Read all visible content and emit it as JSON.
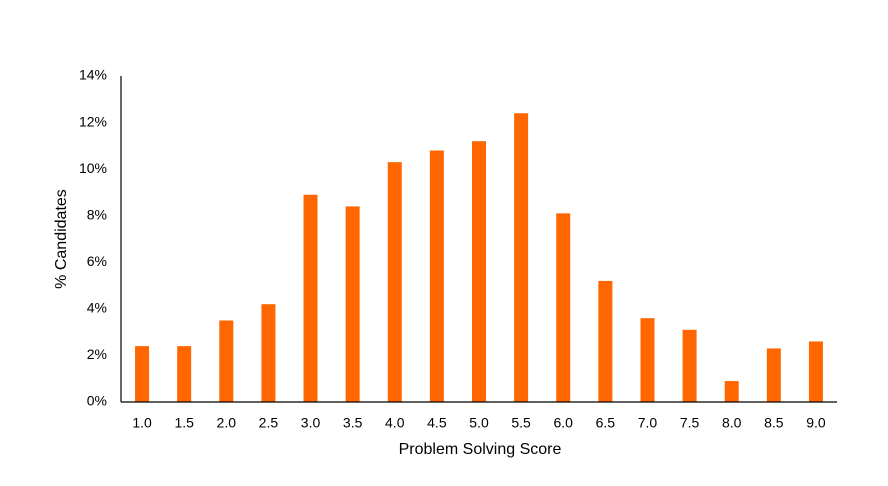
{
  "chart_data": {
    "type": "bar",
    "x_label": "Problem Solving Score",
    "y_label": "% Candidates",
    "categories": [
      "1.0",
      "1.5",
      "2.0",
      "2.5",
      "3.0",
      "3.5",
      "4.0",
      "4.5",
      "5.0",
      "5.5",
      "6.0",
      "6.5",
      "7.0",
      "7.5",
      "8.0",
      "8.5",
      "9.0"
    ],
    "values": [
      2.4,
      2.4,
      3.5,
      4.2,
      8.9,
      8.4,
      10.3,
      10.8,
      11.2,
      12.4,
      8.1,
      5.2,
      3.6,
      3.1,
      0.9,
      2.3,
      2.6
    ],
    "color": "#ff6600",
    "ylim": [
      0,
      14
    ],
    "yticks": [
      {
        "value": 0,
        "label": "0%"
      },
      {
        "value": 2,
        "label": "2%"
      },
      {
        "value": 4,
        "label": "4%"
      },
      {
        "value": 6,
        "label": "6%"
      },
      {
        "value": 8,
        "label": "8%"
      },
      {
        "value": 10,
        "label": "10%"
      },
      {
        "value": 12,
        "label": "12%"
      },
      {
        "value": 14,
        "label": "14%"
      }
    ],
    "grid": false
  }
}
